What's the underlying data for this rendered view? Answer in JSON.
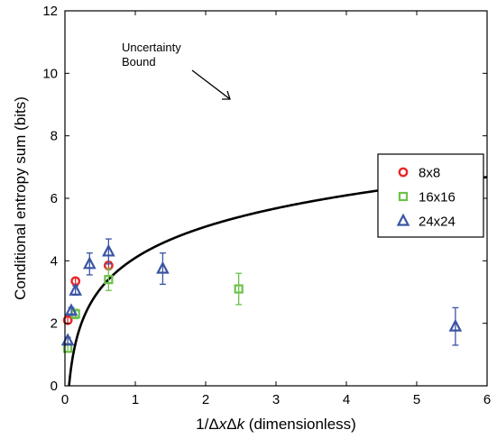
{
  "chart_data": {
    "type": "scatter",
    "xlabel_parts": [
      "1/Δ",
      "x",
      "Δ",
      "k",
      " (dimensionless)"
    ],
    "ylabel": "Conditional entropy sum (bits)",
    "xlim": [
      0,
      6
    ],
    "ylim": [
      0,
      12
    ],
    "xticks": [
      0,
      1,
      2,
      3,
      4,
      5,
      6
    ],
    "yticks": [
      0,
      2,
      4,
      6,
      8,
      10,
      12
    ],
    "grid": false,
    "legend_position": "right",
    "curve": {
      "name": "Uncertainty Bound",
      "function": "log2(2*pi*e*x)",
      "annotation_lines": [
        "Uncertainty",
        "Bound"
      ],
      "color": "#000000"
    },
    "series": [
      {
        "name": "8x8",
        "marker": "circle",
        "color": "#e8282b",
        "points": [
          {
            "x": 0.04,
            "y": 2.1,
            "err": 0.1
          },
          {
            "x": 0.15,
            "y": 3.35,
            "err": 0.1
          },
          {
            "x": 0.62,
            "y": 3.85,
            "err": 0.12
          }
        ]
      },
      {
        "name": "16x16",
        "marker": "square",
        "color": "#6cc24a",
        "points": [
          {
            "x": 0.04,
            "y": 1.2,
            "err": 0.1
          },
          {
            "x": 0.15,
            "y": 2.3,
            "err": 0.15
          },
          {
            "x": 0.62,
            "y": 3.4,
            "err": 0.35
          },
          {
            "x": 2.47,
            "y": 3.1,
            "err": 0.5
          }
        ]
      },
      {
        "name": "24x24",
        "marker": "triangle",
        "color": "#3a54a4",
        "points": [
          {
            "x": 0.04,
            "y": 1.45,
            "err": 0.1
          },
          {
            "x": 0.09,
            "y": 2.4,
            "err": 0.1
          },
          {
            "x": 0.15,
            "y": 3.05,
            "err": 0.15
          },
          {
            "x": 0.35,
            "y": 3.9,
            "err": 0.35
          },
          {
            "x": 0.62,
            "y": 4.3,
            "err": 0.4
          },
          {
            "x": 1.39,
            "y": 3.75,
            "err": 0.5
          },
          {
            "x": 5.55,
            "y": 1.9,
            "err": 0.6
          }
        ]
      }
    ]
  }
}
